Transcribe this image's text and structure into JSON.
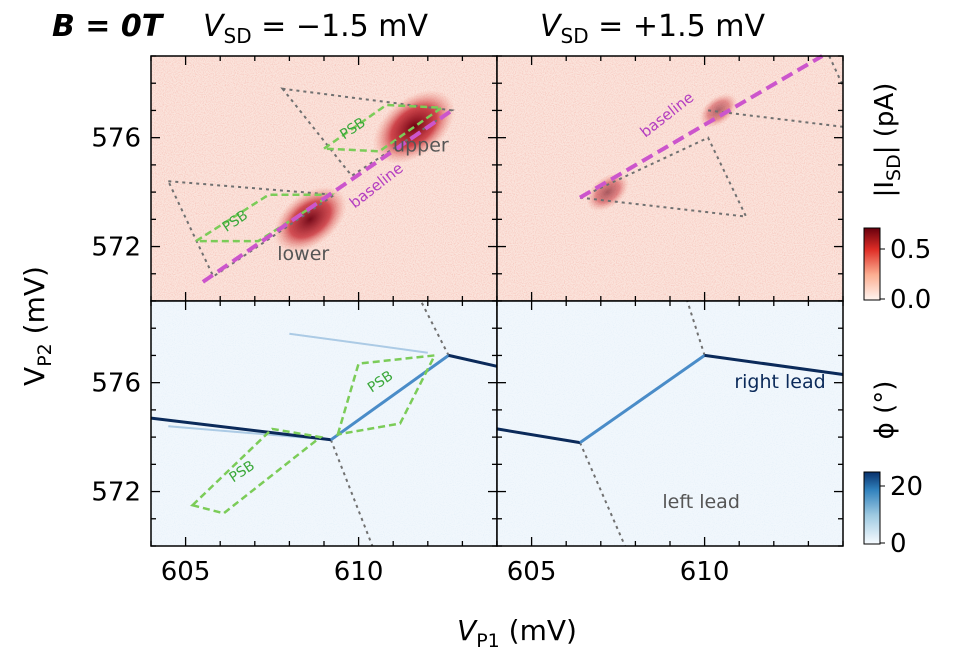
{
  "header": {
    "field_label": "B = 0T",
    "left_title": {
      "symbol": "V",
      "sub": "SD",
      "rest": " = −1.5 mV"
    },
    "right_title": {
      "symbol": "V",
      "sub": "SD",
      "rest": " = +1.5 mV"
    }
  },
  "axes": {
    "x_title": {
      "symbol": "V",
      "sub": "P1",
      "rest": " (mV)"
    },
    "y_title": {
      "symbol": "V",
      "sub": "P2",
      "rest": " (mV)"
    }
  },
  "colorbars": {
    "current": {
      "label_pre": "|I",
      "label_sub": "SD",
      "label_post": "| (pA)",
      "ticks": [
        "0.5",
        "0.0"
      ],
      "range": [
        0.0,
        0.7
      ]
    },
    "phase": {
      "label": "ϕ (°)",
      "ticks": [
        "20",
        "0"
      ],
      "range": [
        0,
        25
      ]
    }
  },
  "colors": {
    "current_bg": "#fbe4dc",
    "current_peak": "#6e0010",
    "phase_bg": "#f1f7fc",
    "phase_line": "#0b2a5a",
    "psb": "#7bcc58",
    "baseline": "#cc55cc",
    "triangle": "#707070"
  },
  "chart_data": [
    {
      "type": "heatmap",
      "panel": "top-left",
      "title": "V_SD = −1.5 mV, |I_SD|",
      "xlim": [
        604.0,
        614.0
      ],
      "ylim": [
        570.0,
        579.0
      ],
      "triangles": [
        [
          [
            604.5,
            574.4
          ],
          [
            609.3,
            573.9
          ],
          [
            605.8,
            570.9
          ]
        ],
        [
          [
            607.8,
            577.8
          ],
          [
            612.7,
            577.0
          ],
          [
            609.8,
            574.6
          ]
        ]
      ],
      "baseline": [
        [
          605.5,
          570.7
        ],
        [
          612.7,
          577.0
        ]
      ],
      "psb_regions": [
        [
          [
            605.3,
            572.2
          ],
          [
            607.4,
            573.9
          ],
          [
            609.2,
            573.9
          ],
          [
            607.1,
            572.2
          ]
        ],
        [
          [
            609.0,
            575.6
          ],
          [
            610.8,
            577.2
          ],
          [
            612.4,
            577.1
          ],
          [
            610.6,
            575.5
          ]
        ]
      ],
      "annotations": [
        {
          "text": "upper",
          "x": 611.8,
          "y": 575.5
        },
        {
          "text": "lower",
          "x": 608.4,
          "y": 571.5
        },
        {
          "text": "PSB",
          "x": 606.5,
          "y": 572.8
        },
        {
          "text": "PSB",
          "x": 609.9,
          "y": 576.2
        },
        {
          "text": "baseline",
          "x": 610.6,
          "y": 574.1
        }
      ],
      "hotspots": [
        {
          "x": 608.6,
          "y": 573.0,
          "value": 0.6
        },
        {
          "x": 611.6,
          "y": 576.4,
          "value": 0.7
        }
      ],
      "yticks": [
        572,
        576
      ]
    },
    {
      "type": "heatmap",
      "panel": "top-right",
      "title": "V_SD = +1.5 mV, |I_SD|",
      "xlim": [
        604.0,
        614.0
      ],
      "ylim": [
        570.0,
        579.0
      ],
      "triangles": [
        [
          [
            606.4,
            573.8
          ],
          [
            611.2,
            573.1
          ],
          [
            610.1,
            576.0
          ]
        ]
      ],
      "extra_lines": [
        [
          [
            610.1,
            577.0
          ],
          [
            614.0,
            576.4
          ]
        ],
        [
          [
            613.6,
            579.0
          ],
          [
            614.0,
            577.9
          ]
        ]
      ],
      "baseline": [
        [
          606.4,
          573.8
        ],
        [
          613.4,
          579.0
        ]
      ],
      "annotations": [
        {
          "text": "baseline",
          "x": 609.0,
          "y": 576.7
        }
      ],
      "hotspots": [
        {
          "x": 607.2,
          "y": 574.0,
          "value": 0.25
        },
        {
          "x": 610.4,
          "y": 577.0,
          "value": 0.2
        }
      ]
    },
    {
      "type": "heatmap",
      "panel": "bottom-left",
      "title": "V_SD = −1.5 mV, ϕ",
      "xlim": [
        604.0,
        614.0
      ],
      "ylim": [
        570.0,
        579.0
      ],
      "lead_lines": [
        [
          [
            604.0,
            574.7
          ],
          [
            609.2,
            573.9
          ]
        ],
        [
          [
            609.2,
            573.9
          ],
          [
            612.6,
            577.0
          ]
        ],
        [
          [
            612.6,
            577.0
          ],
          [
            614.0,
            576.6
          ]
        ]
      ],
      "faint_lines": [
        [
          [
            608.0,
            577.8
          ],
          [
            612.0,
            577.1
          ]
        ],
        [
          [
            604.5,
            574.4
          ],
          [
            609.2,
            573.9
          ]
        ]
      ],
      "dashed_lines": [
        [
          [
            609.2,
            573.9
          ],
          [
            610.4,
            570.0
          ]
        ],
        [
          [
            612.6,
            577.0
          ],
          [
            611.8,
            579.0
          ]
        ]
      ],
      "psb_regions": [
        [
          [
            605.2,
            571.5
          ],
          [
            607.5,
            574.3
          ],
          [
            608.9,
            574.0
          ],
          [
            606.1,
            571.2
          ]
        ],
        [
          [
            609.4,
            574.1
          ],
          [
            610.0,
            576.7
          ],
          [
            612.2,
            577.0
          ],
          [
            611.2,
            574.5
          ]
        ]
      ],
      "annotations": [
        {
          "text": "PSB",
          "x": 606.7,
          "y": 572.6
        },
        {
          "text": "PSB",
          "x": 610.7,
          "y": 575.9
        }
      ],
      "yticks": [
        572,
        576
      ],
      "xticks": [
        605,
        610
      ]
    },
    {
      "type": "heatmap",
      "panel": "bottom-right",
      "title": "V_SD = +1.5 mV, ϕ",
      "xlim": [
        604.0,
        614.0
      ],
      "ylim": [
        570.0,
        579.0
      ],
      "lead_lines": [
        [
          [
            604.0,
            574.3
          ],
          [
            606.4,
            573.8
          ]
        ],
        [
          [
            606.4,
            573.8
          ],
          [
            610.0,
            577.0
          ]
        ],
        [
          [
            610.0,
            577.0
          ],
          [
            614.0,
            576.3
          ]
        ]
      ],
      "dashed_lines": [
        [
          [
            606.4,
            573.8
          ],
          [
            607.7,
            570.0
          ]
        ],
        [
          [
            610.0,
            577.0
          ],
          [
            609.5,
            579.0
          ]
        ]
      ],
      "annotations": [
        {
          "text": "right lead",
          "x": 613.5,
          "y": 575.8
        },
        {
          "text": "left lead",
          "x": 609.9,
          "y": 571.4
        }
      ],
      "xticks": [
        605,
        610
      ]
    }
  ]
}
